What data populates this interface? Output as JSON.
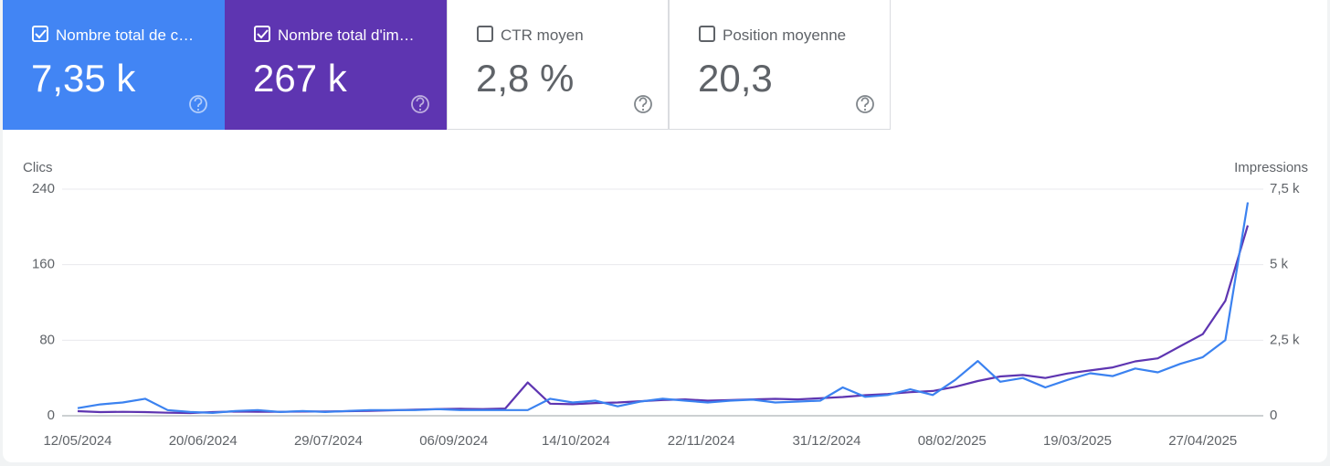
{
  "cards": [
    {
      "label": "Nombre total de c…",
      "value": "7,35 k",
      "checked": true,
      "color": "#4285f4"
    },
    {
      "label": "Nombre total d'im…",
      "value": "267 k",
      "checked": true,
      "color": "#5e35b1"
    },
    {
      "label": "CTR moyen",
      "value": "2,8 %",
      "checked": false,
      "color": "#ffffff"
    },
    {
      "label": "Position moyenne",
      "value": "20,3",
      "checked": false,
      "color": "#ffffff"
    }
  ],
  "chart_data": {
    "type": "line",
    "y_label": "Clics",
    "y2_label": "Impressions",
    "x": [
      "12/05/2024",
      "19/05/2024",
      "26/05/2024",
      "02/06/2024",
      "09/06/2024",
      "16/06/2024",
      "23/06/2024",
      "30/06/2024",
      "07/07/2024",
      "14/07/2024",
      "21/07/2024",
      "28/07/2024",
      "04/08/2024",
      "11/08/2024",
      "18/08/2024",
      "25/08/2024",
      "01/09/2024",
      "08/09/2024",
      "15/09/2024",
      "22/09/2024",
      "29/09/2024",
      "06/10/2024",
      "13/10/2024",
      "20/10/2024",
      "27/10/2024",
      "03/11/2024",
      "10/11/2024",
      "17/11/2024",
      "24/11/2024",
      "01/12/2024",
      "08/12/2024",
      "15/12/2024",
      "22/12/2024",
      "29/12/2024",
      "05/01/2025",
      "12/01/2025",
      "19/01/2025",
      "26/01/2025",
      "02/02/2025",
      "09/02/2025",
      "16/02/2025",
      "23/02/2025",
      "02/03/2025",
      "09/03/2025",
      "16/03/2025",
      "23/03/2025",
      "30/03/2025",
      "06/04/2025",
      "13/04/2025",
      "20/04/2025",
      "27/04/2025",
      "04/05/2025",
      "11/05/2025"
    ],
    "xlim": [
      "12/05/2024",
      "11/05/2025"
    ],
    "xticks": [
      "12/05/2024",
      "20/06/2024",
      "29/07/2024",
      "06/09/2024",
      "14/10/2024",
      "22/11/2024",
      "31/12/2024",
      "08/02/2025",
      "19/03/2025",
      "27/04/2025"
    ],
    "ylim": [
      0,
      240
    ],
    "yticks": [
      0,
      80,
      160,
      240
    ],
    "y2lim": [
      0,
      7500
    ],
    "y2ticks": [
      0,
      {
        "value": 2500,
        "label": "2,5 k"
      },
      {
        "value": 5000,
        "label": "5 k"
      },
      {
        "value": 7500,
        "label": "7,5 k"
      }
    ],
    "grid": true,
    "series": [
      {
        "name": "Nombre total d'im…",
        "color": "#5e35b1",
        "axis": "y2",
        "values": [
          150,
          120,
          130,
          120,
          100,
          90,
          120,
          140,
          130,
          130,
          140,
          140,
          150,
          160,
          180,
          200,
          220,
          230,
          220,
          240,
          1100,
          400,
          380,
          420,
          440,
          480,
          520,
          540,
          500,
          520,
          540,
          560,
          540,
          580,
          620,
          680,
          720,
          780,
          820,
          960,
          1150,
          1300,
          1350,
          1250,
          1400,
          1500,
          1600,
          1800,
          1900,
          2300,
          2700,
          3800,
          6300
        ]
      },
      {
        "name": "Nombre total de c…",
        "color": "#3b82f0",
        "values": [
          8,
          12,
          14,
          18,
          6,
          4,
          3,
          5,
          6,
          4,
          5,
          4,
          5,
          6,
          6,
          6,
          7,
          6,
          6,
          6,
          6,
          18,
          14,
          16,
          10,
          15,
          18,
          16,
          14,
          16,
          17,
          14,
          15,
          16,
          30,
          20,
          22,
          28,
          22,
          38,
          58,
          36,
          40,
          30,
          38,
          45,
          42,
          50,
          46,
          55,
          62,
          80,
          226
        ]
      }
    ]
  }
}
